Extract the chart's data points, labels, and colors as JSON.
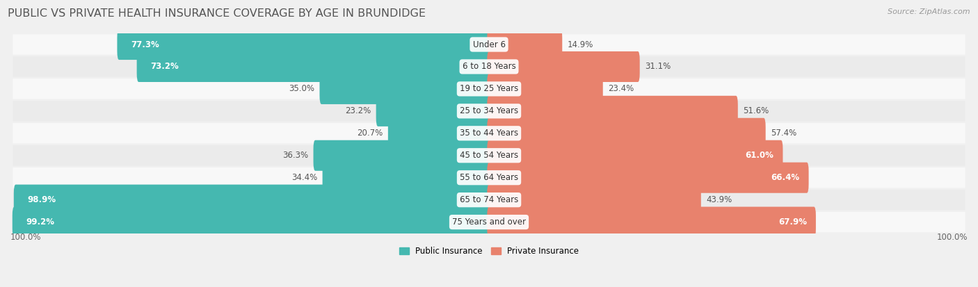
{
  "title": "PUBLIC VS PRIVATE HEALTH INSURANCE COVERAGE BY AGE IN BRUNDIDGE",
  "source": "Source: ZipAtlas.com",
  "categories": [
    "Under 6",
    "6 to 18 Years",
    "19 to 25 Years",
    "25 to 34 Years",
    "35 to 44 Years",
    "45 to 54 Years",
    "55 to 64 Years",
    "65 to 74 Years",
    "75 Years and over"
  ],
  "public_values": [
    77.3,
    73.2,
    35.0,
    23.2,
    20.7,
    36.3,
    34.4,
    98.9,
    99.2
  ],
  "private_values": [
    14.9,
    31.1,
    23.4,
    51.6,
    57.4,
    61.0,
    66.4,
    43.9,
    67.9
  ],
  "public_color": "#45b8b0",
  "private_color": "#e8826d",
  "background_color": "#f0f0f0",
  "row_light_color": "#f8f8f8",
  "row_dark_color": "#ebebeb",
  "max_value": 100.0,
  "title_fontsize": 11.5,
  "label_fontsize": 8.5,
  "tick_fontsize": 8.5,
  "source_fontsize": 8
}
